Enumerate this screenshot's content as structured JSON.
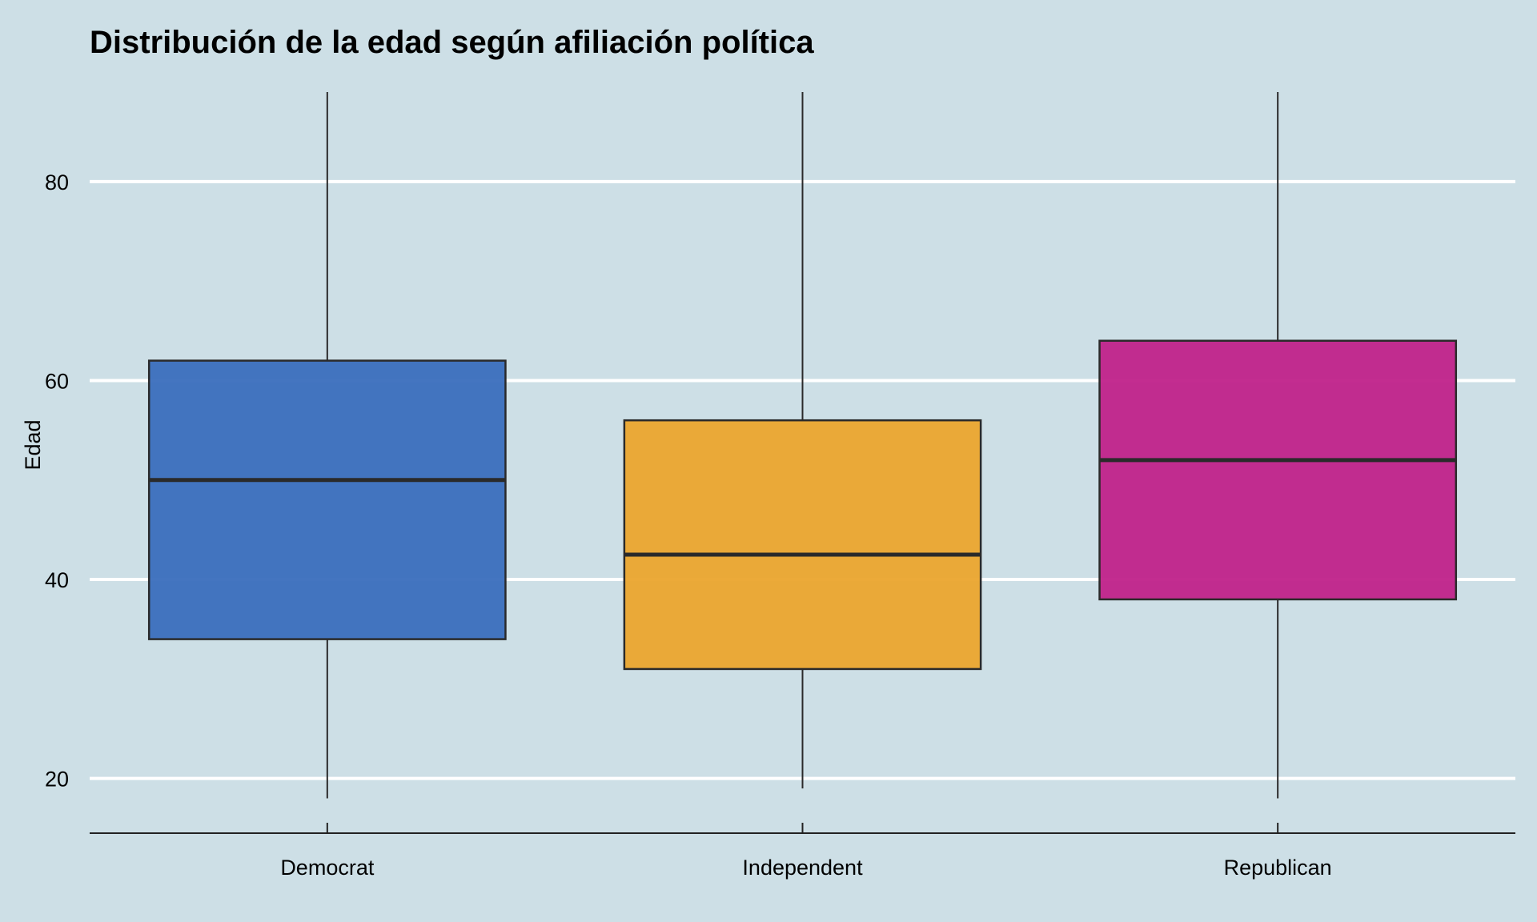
{
  "chart_data": {
    "type": "boxplot",
    "title": "Distribución de la edad según afiliación política",
    "xlabel": "",
    "ylabel": "Edad",
    "categories": [
      "Democrat",
      "Independent",
      "Republican"
    ],
    "boxes": [
      {
        "category": "Democrat",
        "min": 18,
        "q1": 34,
        "median": 50,
        "q3": 62,
        "max": 89,
        "color": "#3a6ebd"
      },
      {
        "category": "Independent",
        "min": 19,
        "q1": 31,
        "median": 42.5,
        "q3": 56,
        "max": 89,
        "color": "#eba52e"
      },
      {
        "category": "Republican",
        "min": 18,
        "q1": 38,
        "median": 52,
        "q3": 64,
        "max": 89,
        "color": "#c0228a"
      }
    ],
    "y_ticks": [
      20,
      40,
      60,
      80
    ],
    "ylim": [
      14.5,
      89
    ],
    "grid": "horizontal",
    "legend": "none",
    "colors": {
      "background": "#cddfe6",
      "gridline": "#ffffff",
      "outline": "#2a2a2a"
    }
  }
}
